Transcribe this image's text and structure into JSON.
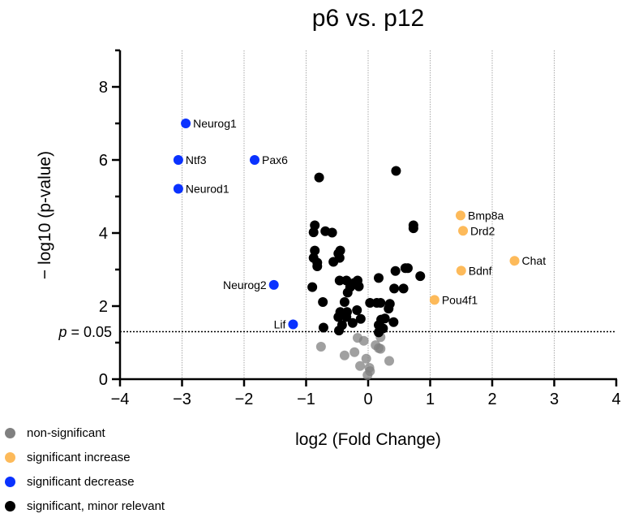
{
  "chart_data": {
    "type": "scatter",
    "title": "p6 vs. p12",
    "xlabel": "log2 (Fold Change)",
    "ylabel": "− log10 (p-value)",
    "xlim": [
      -4,
      4
    ],
    "ylim": [
      0,
      9
    ],
    "xticks": [
      -4,
      -3,
      -2,
      -1,
      0,
      1,
      2,
      3,
      4
    ],
    "xtick_labels": [
      "−4",
      "−3",
      "−2",
      "−1",
      "0",
      "1",
      "2",
      "3",
      "4"
    ],
    "yticks": [
      0,
      2,
      4,
      6,
      8
    ],
    "ytick_labels": [
      "0",
      "2",
      "4",
      "6",
      "8"
    ],
    "grid": "vertical dotted",
    "threshold": {
      "y": 1.3,
      "label_italic": "p",
      "label_rest": " = 0.05"
    },
    "legend_placement": "bottom-left",
    "colors": {
      "non-significant": "#808080",
      "increase": "#FDBA5A",
      "decrease": "#0A32FF",
      "minor": "#000000"
    },
    "legend": [
      {
        "key": "non-significant",
        "label": "non-significant"
      },
      {
        "key": "increase",
        "label": "significant increase"
      },
      {
        "key": "decrease",
        "label": "significant decrease"
      },
      {
        "key": "minor",
        "label": "significant, minor relevant"
      }
    ],
    "series": [
      {
        "name": "significant decrease",
        "key": "decrease",
        "points": [
          {
            "x": -2.94,
            "y": 7.0,
            "label": "Neurog1",
            "side": "right"
          },
          {
            "x": -3.06,
            "y": 6.0,
            "label": "Ntf3",
            "side": "right"
          },
          {
            "x": -1.83,
            "y": 6.0,
            "label": "Pax6",
            "side": "right"
          },
          {
            "x": -3.06,
            "y": 5.21,
            "label": "Neurod1",
            "side": "right"
          },
          {
            "x": -1.52,
            "y": 2.58,
            "label": "Neurog2",
            "side": "left"
          },
          {
            "x": -1.21,
            "y": 1.5,
            "label": "Lif",
            "side": "left"
          }
        ]
      },
      {
        "name": "significant increase",
        "key": "increase",
        "points": [
          {
            "x": 1.49,
            "y": 4.48,
            "label": "Bmp8a",
            "side": "right"
          },
          {
            "x": 1.53,
            "y": 4.06,
            "label": "Drd2",
            "side": "right"
          },
          {
            "x": 1.5,
            "y": 2.97,
            "label": "Bdnf",
            "side": "right"
          },
          {
            "x": 2.36,
            "y": 3.24,
            "label": "Chat",
            "side": "right"
          },
          {
            "x": 1.07,
            "y": 2.17,
            "label": "Pou4f1",
            "side": "right"
          }
        ]
      },
      {
        "name": "significant, minor relevant",
        "key": "minor",
        "points": [
          {
            "x": -0.79,
            "y": 5.52
          },
          {
            "x": 0.45,
            "y": 5.7
          },
          {
            "x": 0.73,
            "y": 4.21
          },
          {
            "x": 0.73,
            "y": 4.13
          },
          {
            "x": -0.86,
            "y": 4.21
          },
          {
            "x": -0.88,
            "y": 4.02
          },
          {
            "x": -0.69,
            "y": 4.05
          },
          {
            "x": -0.58,
            "y": 4.01
          },
          {
            "x": -0.86,
            "y": 3.52
          },
          {
            "x": -0.88,
            "y": 3.32
          },
          {
            "x": -0.82,
            "y": 3.19
          },
          {
            "x": -0.82,
            "y": 3.09
          },
          {
            "x": -0.45,
            "y": 3.52
          },
          {
            "x": -0.48,
            "y": 3.44
          },
          {
            "x": -0.46,
            "y": 3.32
          },
          {
            "x": -0.56,
            "y": 3.21
          },
          {
            "x": 0.6,
            "y": 3.04
          },
          {
            "x": 0.64,
            "y": 3.04
          },
          {
            "x": 0.44,
            "y": 2.96
          },
          {
            "x": 0.84,
            "y": 2.82
          },
          {
            "x": 0.17,
            "y": 2.77
          },
          {
            "x": -0.46,
            "y": 2.7
          },
          {
            "x": -0.35,
            "y": 2.7
          },
          {
            "x": -0.17,
            "y": 2.7
          },
          {
            "x": -0.23,
            "y": 2.63
          },
          {
            "x": -0.15,
            "y": 2.54
          },
          {
            "x": -0.29,
            "y": 2.52
          },
          {
            "x": -0.33,
            "y": 2.37
          },
          {
            "x": -0.9,
            "y": 2.52
          },
          {
            "x": 0.42,
            "y": 2.48
          },
          {
            "x": 0.57,
            "y": 2.48
          },
          {
            "x": -0.73,
            "y": 2.11
          },
          {
            "x": -0.38,
            "y": 2.11
          },
          {
            "x": 0.03,
            "y": 2.09
          },
          {
            "x": 0.14,
            "y": 2.09
          },
          {
            "x": 0.2,
            "y": 2.09
          },
          {
            "x": 0.35,
            "y": 2.06
          },
          {
            "x": 0.33,
            "y": 1.93
          },
          {
            "x": -0.45,
            "y": 1.84
          },
          {
            "x": -0.34,
            "y": 1.84
          },
          {
            "x": -0.18,
            "y": 1.89
          },
          {
            "x": -0.48,
            "y": 1.7
          },
          {
            "x": -0.35,
            "y": 1.7
          },
          {
            "x": -0.12,
            "y": 1.65
          },
          {
            "x": -0.25,
            "y": 1.54
          },
          {
            "x": 0.21,
            "y": 1.63
          },
          {
            "x": 0.27,
            "y": 1.66
          },
          {
            "x": 0.41,
            "y": 1.56
          },
          {
            "x": 0.17,
            "y": 1.48
          },
          {
            "x": 0.24,
            "y": 1.39
          },
          {
            "x": 0.17,
            "y": 1.28
          },
          {
            "x": -0.42,
            "y": 1.48
          },
          {
            "x": -0.47,
            "y": 1.33
          },
          {
            "x": -0.72,
            "y": 1.41
          }
        ]
      },
      {
        "name": "non-significant",
        "key": "non-significant",
        "points": [
          {
            "x": -0.76,
            "y": 0.89
          },
          {
            "x": -0.17,
            "y": 1.13
          },
          {
            "x": -0.07,
            "y": 1.05
          },
          {
            "x": 0.2,
            "y": 1.15
          },
          {
            "x": 0.12,
            "y": 0.93
          },
          {
            "x": 0.17,
            "y": 0.85
          },
          {
            "x": 0.2,
            "y": 0.83
          },
          {
            "x": -0.38,
            "y": 0.65
          },
          {
            "x": -0.22,
            "y": 0.74
          },
          {
            "x": 0.34,
            "y": 0.5
          },
          {
            "x": -0.03,
            "y": 0.56
          },
          {
            "x": -0.13,
            "y": 0.36
          },
          {
            "x": 0.02,
            "y": 0.31
          },
          {
            "x": 0.03,
            "y": 0.22
          },
          {
            "x": -0.01,
            "y": 0.11
          }
        ]
      }
    ]
  }
}
